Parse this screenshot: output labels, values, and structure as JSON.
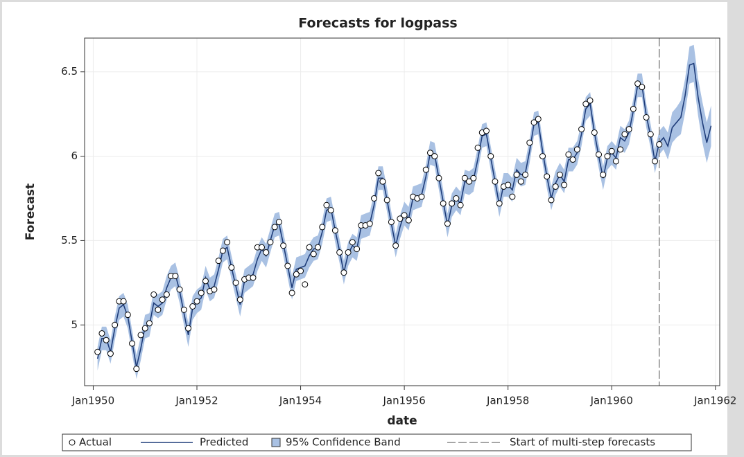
{
  "chart_data": {
    "type": "line",
    "title": "Forecasts for logpass",
    "x_label": "date",
    "y_label": "Forecast",
    "x": [
      "1950-02",
      "1950-03",
      "1950-04",
      "1950-05",
      "1950-06",
      "1950-07",
      "1950-08",
      "1950-09",
      "1950-10",
      "1950-11",
      "1950-12",
      "1951-01",
      "1951-02",
      "1951-03",
      "1951-04",
      "1951-05",
      "1951-06",
      "1951-07",
      "1951-08",
      "1951-09",
      "1951-10",
      "1951-11",
      "1951-12",
      "1952-01",
      "1952-02",
      "1952-03",
      "1952-04",
      "1952-05",
      "1952-06",
      "1952-07",
      "1952-08",
      "1952-09",
      "1952-10",
      "1952-11",
      "1952-12",
      "1953-01",
      "1953-02",
      "1953-03",
      "1953-04",
      "1953-05",
      "1953-06",
      "1953-07",
      "1953-08",
      "1953-09",
      "1953-10",
      "1953-11",
      "1953-12",
      "1954-01",
      "1954-02",
      "1954-03",
      "1954-04",
      "1954-05",
      "1954-06",
      "1954-07",
      "1954-08",
      "1954-09",
      "1954-10",
      "1954-11",
      "1954-12",
      "1955-01",
      "1955-02",
      "1955-03",
      "1955-04",
      "1955-05",
      "1955-06",
      "1955-07",
      "1955-08",
      "1955-09",
      "1955-10",
      "1955-11",
      "1955-12",
      "1956-01",
      "1956-02",
      "1956-03",
      "1956-04",
      "1956-05",
      "1956-06",
      "1956-07",
      "1956-08",
      "1956-09",
      "1956-10",
      "1956-11",
      "1956-12",
      "1957-01",
      "1957-02",
      "1957-03",
      "1957-04",
      "1957-05",
      "1957-06",
      "1957-07",
      "1957-08",
      "1957-09",
      "1957-10",
      "1957-11",
      "1957-12",
      "1958-01",
      "1958-02",
      "1958-03",
      "1958-04",
      "1958-05",
      "1958-06",
      "1958-07",
      "1958-08",
      "1958-09",
      "1958-10",
      "1958-11",
      "1958-12",
      "1959-01",
      "1959-02",
      "1959-03",
      "1959-04",
      "1959-05",
      "1959-06",
      "1959-07",
      "1959-08",
      "1959-09",
      "1959-10",
      "1959-11",
      "1959-12",
      "1960-01",
      "1960-02",
      "1960-03",
      "1960-04",
      "1960-05",
      "1960-06",
      "1960-07",
      "1960-08",
      "1960-09",
      "1960-10",
      "1960-11",
      "1960-12",
      "1961-01",
      "1961-02",
      "1961-03",
      "1961-04",
      "1961-05",
      "1961-06",
      "1961-07",
      "1961-08",
      "1961-09",
      "1961-10",
      "1961-11",
      "1961-12"
    ],
    "series": [
      {
        "name": "Actual",
        "color": "#000000",
        "values": [
          4.84,
          4.95,
          4.91,
          4.83,
          5.0,
          5.14,
          5.14,
          5.06,
          4.89,
          4.74,
          4.94,
          4.98,
          5.01,
          5.18,
          5.09,
          5.15,
          5.18,
          5.29,
          5.29,
          5.21,
          5.09,
          4.98,
          5.11,
          5.14,
          5.19,
          5.26,
          5.2,
          5.21,
          5.38,
          5.44,
          5.49,
          5.34,
          5.25,
          5.15,
          5.27,
          5.28,
          5.28,
          5.46,
          5.46,
          5.43,
          5.49,
          5.58,
          5.61,
          5.47,
          5.35,
          5.19,
          5.3,
          5.32,
          5.24,
          5.46,
          5.42,
          5.46,
          5.58,
          5.71,
          5.68,
          5.56,
          5.43,
          5.31,
          5.43,
          5.49,
          5.45,
          5.59,
          5.59,
          5.6,
          5.75,
          5.9,
          5.85,
          5.74,
          5.61,
          5.47,
          5.63,
          5.65,
          5.62,
          5.76,
          5.75,
          5.76,
          5.92,
          6.02,
          6.0,
          5.87,
          5.72,
          5.6,
          5.72,
          5.75,
          5.71,
          5.87,
          5.85,
          5.87,
          6.05,
          6.14,
          6.15,
          6.0,
          5.85,
          5.72,
          5.82,
          5.83,
          5.76,
          5.89,
          5.85,
          5.89,
          6.08,
          6.2,
          6.22,
          6.0,
          5.88,
          5.74,
          5.82,
          5.89,
          5.83,
          6.01,
          5.98,
          6.04,
          6.16,
          6.31,
          6.33,
          6.14,
          6.01,
          5.89,
          6.0,
          6.03,
          5.97,
          6.04,
          6.13,
          6.16,
          6.28,
          6.43,
          6.41,
          6.23,
          6.13,
          5.97,
          6.07,
          null,
          null,
          null,
          null,
          null,
          null,
          null,
          null,
          null,
          null,
          null,
          null
        ]
      },
      {
        "name": "Predicted",
        "color": "#1f3d7a",
        "values": [
          4.8,
          4.92,
          4.92,
          4.84,
          4.98,
          5.1,
          5.12,
          5.05,
          4.9,
          4.75,
          4.86,
          4.99,
          5.0,
          5.13,
          5.11,
          5.13,
          5.22,
          5.28,
          5.3,
          5.2,
          5.07,
          4.94,
          5.1,
          5.14,
          5.16,
          5.28,
          5.21,
          5.23,
          5.33,
          5.44,
          5.46,
          5.34,
          5.23,
          5.12,
          5.26,
          5.28,
          5.3,
          5.39,
          5.45,
          5.41,
          5.5,
          5.59,
          5.6,
          5.48,
          5.35,
          5.22,
          5.33,
          5.34,
          5.35,
          5.41,
          5.45,
          5.46,
          5.55,
          5.68,
          5.69,
          5.56,
          5.44,
          5.31,
          5.42,
          5.47,
          5.45,
          5.58,
          5.59,
          5.6,
          5.71,
          5.87,
          5.87,
          5.74,
          5.6,
          5.47,
          5.58,
          5.66,
          5.63,
          5.75,
          5.76,
          5.77,
          5.88,
          6.02,
          6.01,
          5.87,
          5.73,
          5.59,
          5.71,
          5.75,
          5.72,
          5.85,
          5.84,
          5.86,
          5.98,
          6.12,
          6.13,
          5.99,
          5.85,
          5.71,
          5.83,
          5.83,
          5.8,
          5.92,
          5.89,
          5.9,
          6.03,
          6.19,
          6.2,
          6.03,
          5.88,
          5.75,
          5.84,
          5.89,
          5.85,
          5.98,
          5.98,
          6.02,
          6.13,
          6.28,
          6.31,
          6.14,
          6.0,
          5.87,
          5.99,
          6.02,
          5.99,
          6.11,
          6.09,
          6.14,
          6.27,
          6.42,
          6.42,
          6.24,
          6.12,
          5.97,
          6.08,
          6.11,
          6.06,
          6.17,
          6.2,
          6.23,
          6.36,
          6.54,
          6.55,
          6.35,
          6.2,
          6.08,
          6.18
        ]
      },
      {
        "name": "95% Confidence Band",
        "color": "#a9c1e3",
        "lower": [
          4.73,
          4.85,
          4.85,
          4.77,
          4.91,
          5.03,
          5.05,
          4.98,
          4.83,
          4.68,
          4.79,
          4.92,
          4.93,
          5.06,
          5.04,
          5.06,
          5.15,
          5.21,
          5.23,
          5.13,
          5.0,
          4.87,
          5.03,
          5.07,
          5.09,
          5.21,
          5.14,
          5.16,
          5.26,
          5.37,
          5.39,
          5.27,
          5.16,
          5.05,
          5.19,
          5.21,
          5.23,
          5.32,
          5.38,
          5.34,
          5.43,
          5.52,
          5.53,
          5.41,
          5.28,
          5.15,
          5.26,
          5.27,
          5.28,
          5.34,
          5.38,
          5.39,
          5.48,
          5.61,
          5.62,
          5.49,
          5.37,
          5.24,
          5.35,
          5.4,
          5.38,
          5.51,
          5.52,
          5.53,
          5.64,
          5.8,
          5.8,
          5.67,
          5.53,
          5.4,
          5.51,
          5.59,
          5.56,
          5.68,
          5.69,
          5.7,
          5.81,
          5.95,
          5.94,
          5.8,
          5.66,
          5.52,
          5.64,
          5.68,
          5.65,
          5.78,
          5.77,
          5.79,
          5.91,
          6.05,
          6.06,
          5.92,
          5.78,
          5.64,
          5.76,
          5.76,
          5.73,
          5.85,
          5.82,
          5.83,
          5.96,
          6.12,
          6.13,
          5.96,
          5.81,
          5.68,
          5.77,
          5.82,
          5.78,
          5.91,
          5.91,
          5.95,
          6.06,
          6.21,
          6.24,
          6.07,
          5.93,
          5.8,
          5.92,
          5.95,
          5.92,
          6.04,
          6.02,
          6.07,
          6.2,
          6.35,
          6.35,
          6.17,
          6.05,
          5.9,
          6.01,
          6.04,
          5.98,
          6.08,
          6.11,
          6.13,
          6.26,
          6.43,
          6.44,
          6.24,
          6.08,
          5.96,
          6.06
        ],
        "upper": [
          4.87,
          4.99,
          4.99,
          4.91,
          5.05,
          5.17,
          5.19,
          5.12,
          4.97,
          4.82,
          4.93,
          5.06,
          5.07,
          5.2,
          5.18,
          5.2,
          5.29,
          5.35,
          5.37,
          5.27,
          5.14,
          5.01,
          5.17,
          5.21,
          5.23,
          5.35,
          5.28,
          5.3,
          5.4,
          5.51,
          5.53,
          5.41,
          5.3,
          5.19,
          5.33,
          5.35,
          5.37,
          5.46,
          5.52,
          5.48,
          5.57,
          5.66,
          5.67,
          5.55,
          5.42,
          5.29,
          5.4,
          5.41,
          5.42,
          5.48,
          5.52,
          5.53,
          5.62,
          5.75,
          5.76,
          5.63,
          5.51,
          5.38,
          5.49,
          5.54,
          5.52,
          5.65,
          5.66,
          5.67,
          5.78,
          5.94,
          5.94,
          5.81,
          5.67,
          5.54,
          5.65,
          5.73,
          5.7,
          5.82,
          5.83,
          5.84,
          5.95,
          6.09,
          6.08,
          5.94,
          5.8,
          5.66,
          5.78,
          5.82,
          5.79,
          5.92,
          5.91,
          5.93,
          6.05,
          6.19,
          6.2,
          6.06,
          5.92,
          5.78,
          5.9,
          5.9,
          5.87,
          5.99,
          5.96,
          5.97,
          6.1,
          6.26,
          6.27,
          6.1,
          5.95,
          5.82,
          5.91,
          5.96,
          5.92,
          6.05,
          6.05,
          6.09,
          6.2,
          6.35,
          6.38,
          6.21,
          6.07,
          5.94,
          6.06,
          6.09,
          6.06,
          6.18,
          6.16,
          6.21,
          6.34,
          6.49,
          6.49,
          6.31,
          6.19,
          6.04,
          6.15,
          6.18,
          6.14,
          6.26,
          6.29,
          6.33,
          6.46,
          6.65,
          6.66,
          6.46,
          6.32,
          6.2,
          6.3
        ]
      }
    ],
    "refline": {
      "name": "Start of multi-step forecasts",
      "x": "1960-12",
      "color": "#888888"
    },
    "xlim": [
      "1949-11",
      "1962-02"
    ],
    "xticks": [
      {
        "value": "1950-01",
        "label": "Jan1950"
      },
      {
        "value": "1952-01",
        "label": "Jan1952"
      },
      {
        "value": "1954-01",
        "label": "Jan1954"
      },
      {
        "value": "1956-01",
        "label": "Jan1956"
      },
      {
        "value": "1958-01",
        "label": "Jan1958"
      },
      {
        "value": "1960-01",
        "label": "Jan1960"
      },
      {
        "value": "1962-01",
        "label": "Jan1962"
      }
    ],
    "ylim": [
      4.64,
      6.7
    ],
    "yticks": [
      5,
      5.5,
      6,
      6.5
    ],
    "grid": true,
    "legend": "bottom"
  }
}
